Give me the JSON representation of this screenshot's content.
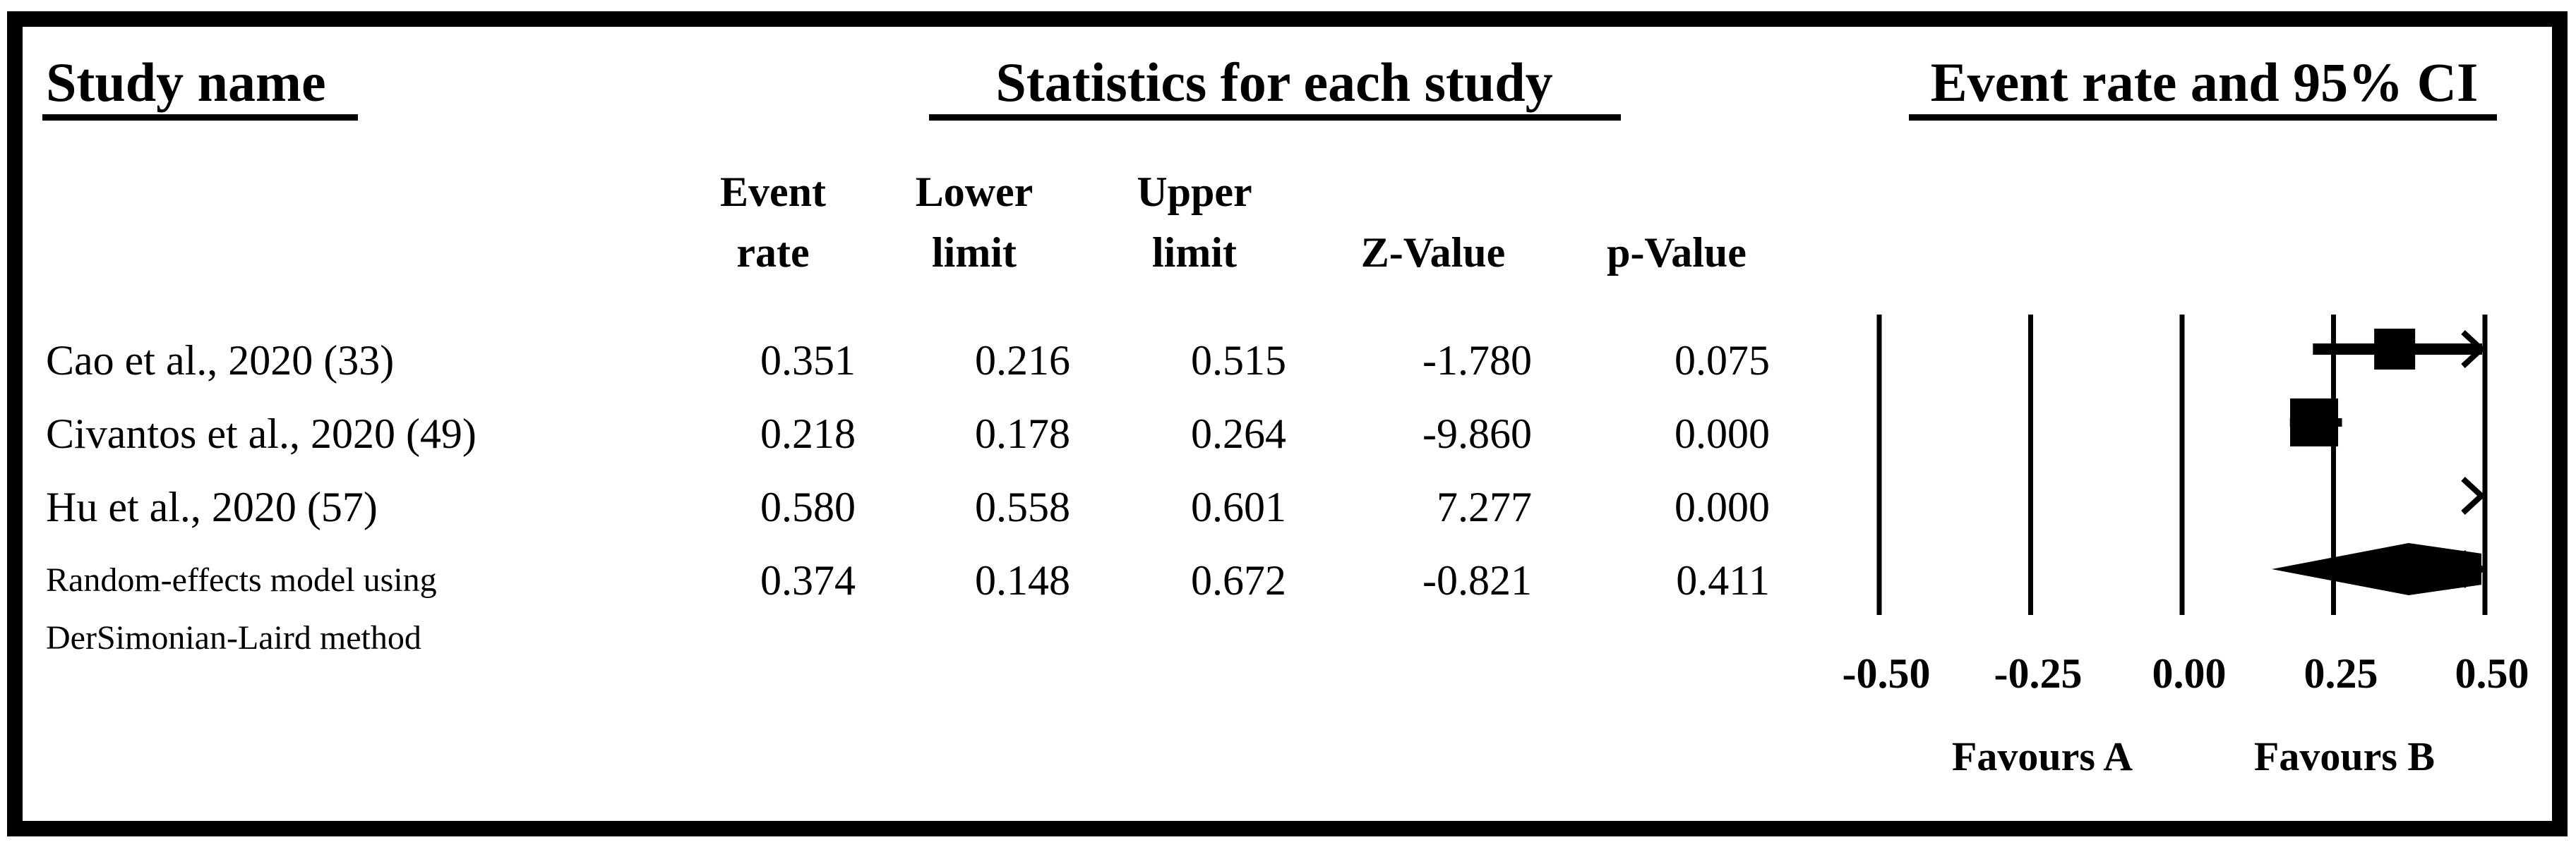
{
  "figure": {
    "study_col_title": "Study name",
    "stats_col_title": "Statistics for each study",
    "plot_col_title": "Event rate and 95% CI"
  },
  "headers": {
    "event_rate_line1": "Event",
    "event_rate_line2": "rate",
    "lower_line1": "Lower",
    "lower_line2": "limit",
    "upper_line1": "Upper",
    "upper_line2": "limit",
    "z_value": "Z-Value",
    "p_value": "p-Value"
  },
  "rows": [
    {
      "study": "Cao et al., 2020 (33)",
      "event_rate": "0.351",
      "lower_limit": "0.216",
      "upper_limit": "0.515",
      "z_value": "-1.780",
      "p_value": "0.075"
    },
    {
      "study": "Civantos et al., 2020 (49)",
      "event_rate": "0.218",
      "lower_limit": "0.178",
      "upper_limit": "0.264",
      "z_value": "-9.860",
      "p_value": "0.000"
    },
    {
      "study": "Hu et al., 2020 (57)",
      "event_rate": "0.580",
      "lower_limit": "0.558",
      "upper_limit": "0.601",
      "z_value": "7.277",
      "p_value": "0.000"
    },
    {
      "study_line1": "Random-effects model using",
      "study_line2": "DerSimonian-Laird method",
      "event_rate": "0.374",
      "lower_limit": "0.148",
      "upper_limit": "0.672",
      "z_value": "-0.821",
      "p_value": "0.411"
    }
  ],
  "axis": {
    "tick_labels": [
      "-0.50",
      "-0.25",
      "0.00",
      "0.25",
      "0.50"
    ],
    "favours_left": "Favours A",
    "favours_right": "Favours B"
  },
  "chart_data": {
    "type": "scatter",
    "subtype": "forest-plot",
    "title": "Event rate and 95% CI",
    "xlim": [
      -0.5,
      0.5
    ],
    "x_ticks": [
      -0.5,
      -0.25,
      0.0,
      0.25,
      0.5
    ],
    "grid": "vertical-lines",
    "effect_measure": "Event rate",
    "studies": [
      {
        "name": "Cao et al., 2020 (33)",
        "event_rate": 0.351,
        "ci_lower": 0.216,
        "ci_upper": 0.515,
        "z_value": -1.78,
        "p_value": 0.075,
        "marker": "square",
        "ci_clipped_right": true
      },
      {
        "name": "Civantos et al., 2020 (49)",
        "event_rate": 0.218,
        "ci_lower": 0.178,
        "ci_upper": 0.264,
        "z_value": -9.86,
        "p_value": 0.0,
        "marker": "square",
        "ci_clipped_right": false
      },
      {
        "name": "Hu et al., 2020 (57)",
        "event_rate": 0.58,
        "ci_lower": 0.558,
        "ci_upper": 0.601,
        "z_value": 7.277,
        "p_value": 0.0,
        "marker": "arrow-off-scale",
        "ci_clipped_right": true
      },
      {
        "name": "Random-effects model using DerSimonian-Laird method",
        "event_rate": 0.374,
        "ci_lower": 0.148,
        "ci_upper": 0.672,
        "z_value": -0.821,
        "p_value": 0.411,
        "marker": "diamond",
        "ci_clipped_right": true
      }
    ],
    "annotations": {
      "favours_left": "Favours A",
      "favours_right": "Favours B"
    }
  }
}
